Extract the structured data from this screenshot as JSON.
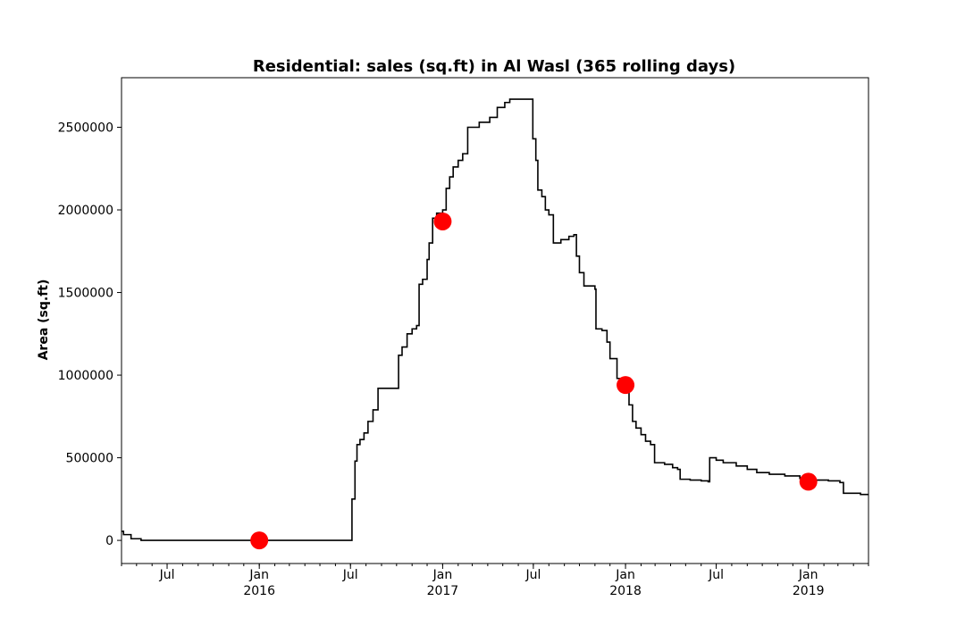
{
  "chart_data": {
    "type": "line",
    "title": "Residential: sales (sq.ft) in Al Wasl (365 rolling days)",
    "xlabel": "",
    "ylabel": "Area (sq.ft)",
    "x_range": [
      "2015-04-01",
      "2019-05-01"
    ],
    "ylim": [
      -140000,
      2800000
    ],
    "yticks": [
      0,
      500000,
      1000000,
      1500000,
      2000000,
      2500000
    ],
    "ytick_labels": [
      "0",
      "500000",
      "1000000",
      "1500000",
      "2000000",
      "2500000"
    ],
    "xticks": [
      {
        "date": "2015-07-01",
        "label": "Jul",
        "sublabel": ""
      },
      {
        "date": "2016-01-01",
        "label": "Jan",
        "sublabel": "2016"
      },
      {
        "date": "2016-07-01",
        "label": "Jul",
        "sublabel": ""
      },
      {
        "date": "2017-01-01",
        "label": "Jan",
        "sublabel": "2017"
      },
      {
        "date": "2017-07-01",
        "label": "Jul",
        "sublabel": ""
      },
      {
        "date": "2018-01-01",
        "label": "Jan",
        "sublabel": "2018"
      },
      {
        "date": "2018-07-01",
        "label": "Jul",
        "sublabel": ""
      },
      {
        "date": "2019-01-01",
        "label": "Jan",
        "sublabel": "2019"
      }
    ],
    "grid": false,
    "series": [
      {
        "color": "#000000",
        "step": true,
        "points": [
          [
            "2015-04-01",
            55000
          ],
          [
            "2015-04-05",
            35000
          ],
          [
            "2015-04-20",
            10000
          ],
          [
            "2015-05-10",
            0
          ],
          [
            "2016-07-02",
            0
          ],
          [
            "2016-07-04",
            250000
          ],
          [
            "2016-07-10",
            480000
          ],
          [
            "2016-07-14",
            580000
          ],
          [
            "2016-07-20",
            610000
          ],
          [
            "2016-07-28",
            650000
          ],
          [
            "2016-08-05",
            720000
          ],
          [
            "2016-08-15",
            790000
          ],
          [
            "2016-08-25",
            920000
          ],
          [
            "2016-09-30",
            920000
          ],
          [
            "2016-10-05",
            1120000
          ],
          [
            "2016-10-12",
            1170000
          ],
          [
            "2016-10-22",
            1250000
          ],
          [
            "2016-11-01",
            1280000
          ],
          [
            "2016-11-10",
            1300000
          ],
          [
            "2016-11-15",
            1550000
          ],
          [
            "2016-11-22",
            1580000
          ],
          [
            "2016-12-01",
            1700000
          ],
          [
            "2016-12-05",
            1800000
          ],
          [
            "2016-12-12",
            1950000
          ],
          [
            "2016-12-20",
            1980000
          ],
          [
            "2017-01-01",
            2000000
          ],
          [
            "2017-01-08",
            2130000
          ],
          [
            "2017-01-15",
            2200000
          ],
          [
            "2017-01-22",
            2260000
          ],
          [
            "2017-02-01",
            2300000
          ],
          [
            "2017-02-10",
            2340000
          ],
          [
            "2017-02-20",
            2500000
          ],
          [
            "2017-03-15",
            2530000
          ],
          [
            "2017-04-05",
            2560000
          ],
          [
            "2017-04-20",
            2620000
          ],
          [
            "2017-05-05",
            2650000
          ],
          [
            "2017-05-15",
            2670000
          ],
          [
            "2017-06-26",
            2670000
          ],
          [
            "2017-06-30",
            2430000
          ],
          [
            "2017-07-06",
            2300000
          ],
          [
            "2017-07-10",
            2120000
          ],
          [
            "2017-07-18",
            2080000
          ],
          [
            "2017-07-25",
            2000000
          ],
          [
            "2017-08-01",
            1970000
          ],
          [
            "2017-08-10",
            1800000
          ],
          [
            "2017-08-25",
            1820000
          ],
          [
            "2017-09-10",
            1840000
          ],
          [
            "2017-09-20",
            1850000
          ],
          [
            "2017-09-25",
            1720000
          ],
          [
            "2017-10-01",
            1620000
          ],
          [
            "2017-10-10",
            1540000
          ],
          [
            "2017-11-01",
            1520000
          ],
          [
            "2017-11-03",
            1280000
          ],
          [
            "2017-11-15",
            1270000
          ],
          [
            "2017-11-25",
            1200000
          ],
          [
            "2017-12-01",
            1100000
          ],
          [
            "2017-12-15",
            980000
          ],
          [
            "2018-01-01",
            930000
          ],
          [
            "2018-01-08",
            820000
          ],
          [
            "2018-01-15",
            720000
          ],
          [
            "2018-01-22",
            680000
          ],
          [
            "2018-02-01",
            640000
          ],
          [
            "2018-02-10",
            600000
          ],
          [
            "2018-02-20",
            580000
          ],
          [
            "2018-02-28",
            470000
          ],
          [
            "2018-03-20",
            460000
          ],
          [
            "2018-04-05",
            440000
          ],
          [
            "2018-04-15",
            430000
          ],
          [
            "2018-04-20",
            370000
          ],
          [
            "2018-05-10",
            365000
          ],
          [
            "2018-06-01",
            360000
          ],
          [
            "2018-06-15",
            355000
          ],
          [
            "2018-06-18",
            500000
          ],
          [
            "2018-07-01",
            485000
          ],
          [
            "2018-07-15",
            470000
          ],
          [
            "2018-08-10",
            450000
          ],
          [
            "2018-09-01",
            430000
          ],
          [
            "2018-09-20",
            410000
          ],
          [
            "2018-10-15",
            400000
          ],
          [
            "2018-11-15",
            390000
          ],
          [
            "2018-12-15",
            375000
          ],
          [
            "2019-01-15",
            365000
          ],
          [
            "2019-02-10",
            360000
          ],
          [
            "2019-03-05",
            350000
          ],
          [
            "2019-03-12",
            285000
          ],
          [
            "2019-04-15",
            278000
          ],
          [
            "2019-05-01",
            278000
          ]
        ]
      }
    ],
    "markers": {
      "color": "#ff0000",
      "points": [
        [
          "2016-01-01",
          0
        ],
        [
          "2017-01-01",
          1930000
        ],
        [
          "2018-01-01",
          940000
        ],
        [
          "2019-01-01",
          355000
        ]
      ]
    }
  }
}
